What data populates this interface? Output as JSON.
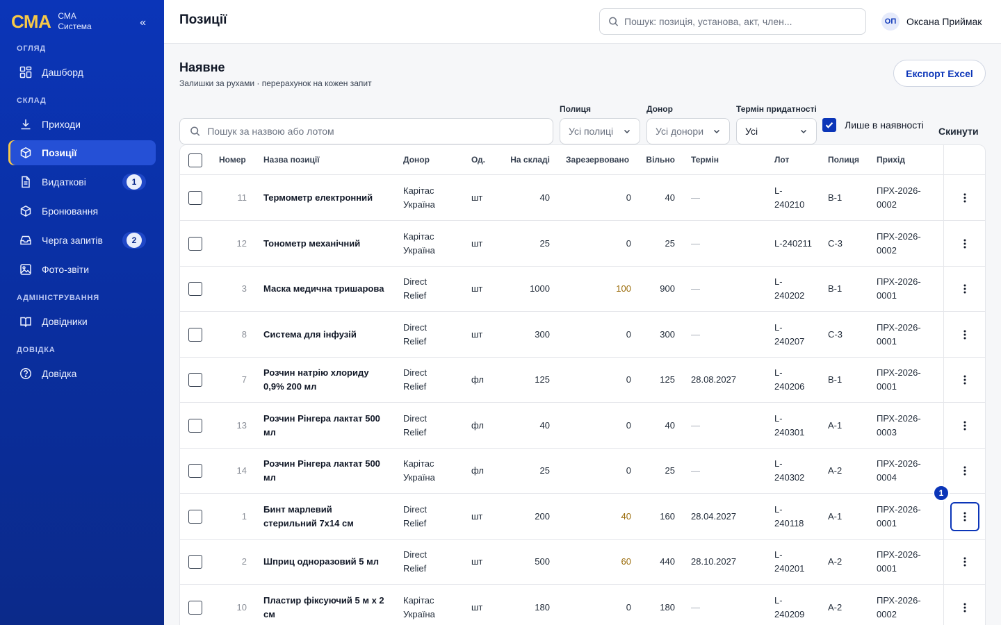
{
  "brand": {
    "logo": "СМА",
    "line1": "СМА",
    "line2": "Система",
    "collapse": "«"
  },
  "sidebar": {
    "sections": [
      {
        "title": "ОГЛЯД"
      },
      {
        "title": "СКЛАД"
      },
      {
        "title": "АДМІНІСТРУВАННЯ"
      },
      {
        "title": "ДОВІДКА"
      }
    ],
    "items": [
      {
        "label": "Дашборд",
        "icon": "dashboard-icon"
      },
      {
        "label": "Приходи",
        "icon": "download-icon"
      },
      {
        "label": "Позиції",
        "icon": "box-icon",
        "active": true
      },
      {
        "label": "Видаткові",
        "icon": "document-icon",
        "badge": "1"
      },
      {
        "label": "Бронювання",
        "icon": "box-icon"
      },
      {
        "label": "Черга запитів",
        "icon": "inbox-icon",
        "badge": "2"
      },
      {
        "label": "Фото-звіти",
        "icon": "image-icon"
      },
      {
        "label": "Довідники",
        "icon": "book-icon"
      },
      {
        "label": "Довідка",
        "icon": "help-icon"
      }
    ]
  },
  "header": {
    "title": "Позиції",
    "search_placeholder": "Пошук: позиція, установа, акт, член...",
    "user_initials": "ОП",
    "user_name": "Оксана Приймак"
  },
  "main": {
    "title": "Наявне",
    "subtitle": "Залишки за рухами · перерахунок на кожен запит",
    "export_label": "Експорт Excel",
    "search_placeholder": "Пошук за назвою або лотом",
    "filters": {
      "shelf_label": "Полиця",
      "shelf_value": "Усі полиці",
      "donor_label": "Донор",
      "donor_value": "Усі донори",
      "expiry_label": "Термін придатності",
      "expiry_value": "Усі",
      "in_stock_label": "Лише в наявності",
      "in_stock_checked": true,
      "reset_label": "Скинути"
    },
    "columns": [
      "Номер",
      "Назва позиції",
      "Донор",
      "Од.",
      "На складі",
      "Зарезервовано",
      "Вільно",
      "Термін",
      "Лот",
      "Полиця",
      "Прихід"
    ],
    "rows": [
      {
        "num": "11",
        "name1": "Термометр електронний",
        "name2": "",
        "donor1": "Карітас",
        "donor2": "Україна",
        "unit": "шт",
        "stock": "40",
        "reserved": "0",
        "free": "40",
        "term": "—",
        "lot1": "L-",
        "lot2": "240210",
        "shelf": "В-1",
        "arr1": "ПРХ-2026-",
        "arr2": "0002"
      },
      {
        "num": "12",
        "name1": "Тонометр механічний",
        "name2": "",
        "donor1": "Карітас",
        "donor2": "Україна",
        "unit": "шт",
        "stock": "25",
        "reserved": "0",
        "free": "25",
        "term": "—",
        "lot1": "L-240211",
        "lot2": "",
        "shelf": "С-3",
        "arr1": "ПРХ-2026-",
        "arr2": "0002"
      },
      {
        "num": "3",
        "name1": "Маска медична тришарова",
        "name2": "",
        "donor1": "Direct",
        "donor2": "Relief",
        "unit": "шт",
        "stock": "1000",
        "reserved": "100",
        "free": "900",
        "term": "—",
        "lot1": "L-",
        "lot2": "240202",
        "shelf": "В-1",
        "arr1": "ПРХ-2026-",
        "arr2": "0001"
      },
      {
        "num": "8",
        "name1": "Система для інфузій",
        "name2": "",
        "donor1": "Direct",
        "donor2": "Relief",
        "unit": "шт",
        "stock": "300",
        "reserved": "0",
        "free": "300",
        "term": "—",
        "lot1": "L-",
        "lot2": "240207",
        "shelf": "С-3",
        "arr1": "ПРХ-2026-",
        "arr2": "0001"
      },
      {
        "num": "7",
        "name1": "Розчин натрію хлориду",
        "name2": "0,9% 200 мл",
        "donor1": "Direct",
        "donor2": "Relief",
        "unit": "фл",
        "stock": "125",
        "reserved": "0",
        "free": "125",
        "term": "28.08.2027",
        "lot1": "L-",
        "lot2": "240206",
        "shelf": "В-1",
        "arr1": "ПРХ-2026-",
        "arr2": "0001"
      },
      {
        "num": "13",
        "name1": "Розчин Рінгера лактат 500",
        "name2": "мл",
        "donor1": "Direct",
        "donor2": "Relief",
        "unit": "фл",
        "stock": "40",
        "reserved": "0",
        "free": "40",
        "term": "—",
        "lot1": "L-",
        "lot2": "240301",
        "shelf": "А-1",
        "arr1": "ПРХ-2026-",
        "arr2": "0003"
      },
      {
        "num": "14",
        "name1": "Розчин Рінгера лактат 500",
        "name2": "мл",
        "donor1": "Карітас",
        "donor2": "Україна",
        "unit": "фл",
        "stock": "25",
        "reserved": "0",
        "free": "25",
        "term": "—",
        "lot1": "L-",
        "lot2": "240302",
        "shelf": "А-2",
        "arr1": "ПРХ-2026-",
        "arr2": "0004"
      },
      {
        "num": "1",
        "name1": "Бинт марлевий",
        "name2": "стерильний 7х14 см",
        "donor1": "Direct",
        "donor2": "Relief",
        "unit": "шт",
        "stock": "200",
        "reserved": "40",
        "free": "160",
        "term": "28.04.2027",
        "lot1": "L-",
        "lot2": "240118",
        "shelf": "А-1",
        "arr1": "ПРХ-2026-",
        "arr2": "0001"
      },
      {
        "num": "2",
        "name1": "Шприц одноразовий 5 мл",
        "name2": "",
        "donor1": "Direct",
        "donor2": "Relief",
        "unit": "шт",
        "stock": "500",
        "reserved": "60",
        "free": "440",
        "term": "28.10.2027",
        "lot1": "L-",
        "lot2": "240201",
        "shelf": "А-2",
        "arr1": "ПРХ-2026-",
        "arr2": "0001"
      },
      {
        "num": "10",
        "name1": "Пластир фіксуючий 5 м х 2",
        "name2": "см",
        "donor1": "Карітас",
        "donor2": "Україна",
        "unit": "шт",
        "stock": "180",
        "reserved": "0",
        "free": "180",
        "term": "—",
        "lot1": "L-",
        "lot2": "240209",
        "shelf": "А-2",
        "arr1": "ПРХ-2026-",
        "arr2": "0002"
      }
    ],
    "kebab_glyph": "⋮",
    "step_badge": "1",
    "colors": {
      "accent": "#0b35b8",
      "reserved_highlight": "#9a6b09",
      "brand_yellow": "#f7c948"
    }
  }
}
